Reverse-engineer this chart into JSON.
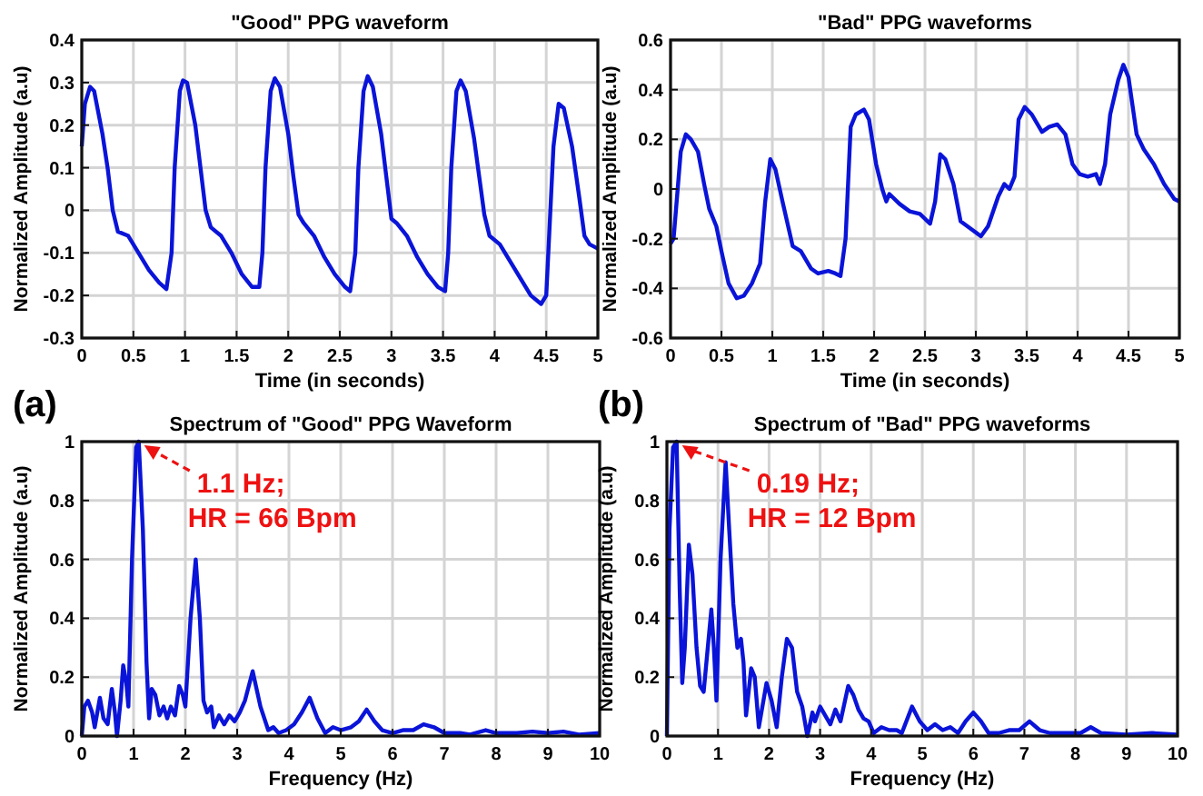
{
  "chart_data": [
    {
      "type": "line",
      "title": "\"Good\" PPG waveform",
      "xlabel": "Time (in seconds)",
      "ylabel": "Normalized Amplitude (a.u)",
      "xlim": [
        0,
        5
      ],
      "ylim": [
        -0.3,
        0.4
      ],
      "xticks": [
        0,
        0.5,
        1,
        1.5,
        2,
        2.5,
        3,
        3.5,
        4,
        4.5,
        5
      ],
      "yticks": [
        -0.3,
        -0.2,
        -0.1,
        0,
        0.1,
        0.2,
        0.3,
        0.4
      ],
      "grid": true,
      "x": [
        0,
        0.03,
        0.08,
        0.12,
        0.2,
        0.25,
        0.3,
        0.35,
        0.45,
        0.55,
        0.65,
        0.75,
        0.82,
        0.87,
        0.9,
        0.95,
        0.98,
        1.02,
        1.1,
        1.15,
        1.2,
        1.25,
        1.35,
        1.45,
        1.55,
        1.65,
        1.72,
        1.75,
        1.78,
        1.83,
        1.87,
        1.92,
        2.0,
        2.05,
        2.1,
        2.15,
        2.25,
        2.35,
        2.45,
        2.55,
        2.6,
        2.65,
        2.68,
        2.73,
        2.77,
        2.82,
        2.9,
        2.95,
        3.0,
        3.05,
        3.15,
        3.25,
        3.35,
        3.45,
        3.52,
        3.55,
        3.58,
        3.63,
        3.67,
        3.72,
        3.8,
        3.85,
        3.9,
        3.95,
        4.05,
        4.15,
        4.25,
        4.35,
        4.45,
        4.5,
        4.53,
        4.57,
        4.62,
        4.67,
        4.75,
        4.82,
        4.87,
        4.92,
        5.0
      ],
      "series": [
        {
          "color": "#0a14d8",
          "values": [
            0.15,
            0.25,
            0.29,
            0.28,
            0.18,
            0.1,
            0.0,
            -0.05,
            -0.06,
            -0.1,
            -0.14,
            -0.17,
            -0.185,
            -0.1,
            0.1,
            0.28,
            0.305,
            0.3,
            0.2,
            0.1,
            0.0,
            -0.04,
            -0.06,
            -0.1,
            -0.15,
            -0.18,
            -0.18,
            -0.1,
            0.1,
            0.28,
            0.31,
            0.29,
            0.18,
            0.08,
            -0.01,
            -0.03,
            -0.06,
            -0.11,
            -0.15,
            -0.18,
            -0.19,
            -0.1,
            0.1,
            0.28,
            0.315,
            0.29,
            0.18,
            0.08,
            -0.02,
            -0.03,
            -0.06,
            -0.11,
            -0.15,
            -0.18,
            -0.19,
            -0.1,
            0.1,
            0.28,
            0.305,
            0.28,
            0.17,
            0.08,
            -0.01,
            -0.06,
            -0.08,
            -0.12,
            -0.16,
            -0.2,
            -0.22,
            -0.2,
            -0.05,
            0.15,
            0.25,
            0.24,
            0.15,
            0.03,
            -0.06,
            -0.08,
            -0.09
          ]
        }
      ]
    },
    {
      "type": "line",
      "title": "\"Bad\" PPG waveforms",
      "xlabel": "Time (in seconds)",
      "ylabel": "Normalized Amplitude (a.u)",
      "xlim": [
        0,
        5
      ],
      "ylim": [
        -0.6,
        0.6
      ],
      "xticks": [
        0,
        0.5,
        1,
        1.5,
        2,
        2.5,
        3,
        3.5,
        4,
        4.5,
        5
      ],
      "yticks": [
        -0.6,
        -0.4,
        -0.2,
        0,
        0.2,
        0.4,
        0.6
      ],
      "grid": true,
      "x": [
        0,
        0.03,
        0.07,
        0.1,
        0.15,
        0.2,
        0.27,
        0.33,
        0.38,
        0.45,
        0.5,
        0.57,
        0.65,
        0.72,
        0.8,
        0.88,
        0.93,
        0.98,
        1.03,
        1.1,
        1.2,
        1.28,
        1.38,
        1.45,
        1.55,
        1.62,
        1.67,
        1.72,
        1.77,
        1.82,
        1.9,
        1.95,
        2.02,
        2.08,
        2.12,
        2.15,
        2.25,
        2.35,
        2.45,
        2.55,
        2.6,
        2.65,
        2.7,
        2.78,
        2.85,
        2.95,
        3.05,
        3.12,
        3.22,
        3.28,
        3.33,
        3.38,
        3.42,
        3.48,
        3.55,
        3.65,
        3.72,
        3.8,
        3.88,
        3.95,
        4.02,
        4.1,
        4.18,
        4.22,
        4.27,
        4.32,
        4.4,
        4.45,
        4.5,
        4.58,
        4.65,
        4.75,
        4.85,
        4.95,
        5.0
      ],
      "series": [
        {
          "color": "#0a14d8",
          "values": [
            -0.22,
            -0.2,
            0.0,
            0.15,
            0.22,
            0.2,
            0.15,
            0.02,
            -0.08,
            -0.15,
            -0.25,
            -0.38,
            -0.44,
            -0.43,
            -0.38,
            -0.3,
            -0.05,
            0.12,
            0.08,
            -0.05,
            -0.23,
            -0.25,
            -0.32,
            -0.34,
            -0.33,
            -0.34,
            -0.35,
            -0.2,
            0.25,
            0.3,
            0.32,
            0.28,
            0.1,
            0.0,
            -0.05,
            -0.02,
            -0.06,
            -0.09,
            -0.1,
            -0.14,
            -0.05,
            0.14,
            0.12,
            0.02,
            -0.13,
            -0.16,
            -0.19,
            -0.15,
            -0.03,
            0.02,
            0.0,
            0.05,
            0.28,
            0.33,
            0.3,
            0.23,
            0.25,
            0.26,
            0.22,
            0.1,
            0.06,
            0.05,
            0.06,
            0.02,
            0.1,
            0.3,
            0.44,
            0.5,
            0.45,
            0.22,
            0.16,
            0.1,
            0.02,
            -0.04,
            -0.05
          ]
        }
      ]
    },
    {
      "type": "line",
      "title": "Spectrum of \"Good\" PPG Waveform",
      "xlabel": "Frequency (Hz)",
      "ylabel": "Normalized Amplitude (a.u)",
      "xlim": [
        0,
        10
      ],
      "ylim": [
        0,
        1
      ],
      "xticks": [
        0,
        1,
        2,
        3,
        4,
        5,
        6,
        7,
        8,
        9,
        10
      ],
      "yticks": [
        0,
        0.2,
        0.4,
        0.6,
        0.8,
        1
      ],
      "grid": true,
      "annotations": [
        "(a)",
        {
          "text": "1.1 Hz;\nHR = 66 Bpm",
          "x": 1.1,
          "y": 1
        }
      ],
      "x": [
        0,
        0.05,
        0.12,
        0.2,
        0.25,
        0.35,
        0.42,
        0.5,
        0.58,
        0.64,
        0.68,
        0.75,
        0.8,
        0.86,
        0.9,
        0.97,
        1.05,
        1.1,
        1.18,
        1.25,
        1.3,
        1.35,
        1.42,
        1.5,
        1.58,
        1.65,
        1.72,
        1.8,
        1.88,
        1.95,
        2.0,
        2.1,
        2.2,
        2.28,
        2.35,
        2.42,
        2.5,
        2.55,
        2.65,
        2.75,
        2.85,
        2.95,
        3.05,
        3.15,
        3.3,
        3.45,
        3.6,
        3.7,
        3.8,
        3.95,
        4.1,
        4.25,
        4.4,
        4.55,
        4.7,
        4.85,
        5.0,
        5.2,
        5.35,
        5.5,
        5.65,
        5.8,
        6.0,
        6.2,
        6.4,
        6.6,
        6.8,
        7.0,
        7.3,
        7.5,
        7.8,
        8.0,
        8.4,
        8.7,
        9.0,
        9.3,
        9.6,
        10
      ],
      "series": [
        {
          "color": "#0a14d8",
          "values": [
            0,
            0.1,
            0.12,
            0.08,
            0.03,
            0.13,
            0.06,
            0.04,
            0.16,
            0.08,
            0,
            0.12,
            0.24,
            0.18,
            0.1,
            0.6,
            0.98,
            1.0,
            0.7,
            0.25,
            0.06,
            0.16,
            0.14,
            0.07,
            0.1,
            0.06,
            0.1,
            0.07,
            0.17,
            0.14,
            0.1,
            0.4,
            0.6,
            0.4,
            0.12,
            0.08,
            0.1,
            0.03,
            0.07,
            0.04,
            0.07,
            0.05,
            0.08,
            0.12,
            0.22,
            0.1,
            0.02,
            0.03,
            0.01,
            0.02,
            0.04,
            0.08,
            0.13,
            0.06,
            0.01,
            0.03,
            0.02,
            0.03,
            0.05,
            0.09,
            0.05,
            0.02,
            0.01,
            0.02,
            0.02,
            0.04,
            0.03,
            0.01,
            0.01,
            0.005,
            0.02,
            0.01,
            0.01,
            0.015,
            0.01,
            0.015,
            0.005,
            0.01
          ]
        }
      ]
    },
    {
      "type": "line",
      "title": "Spectrum of \"Bad\" PPG waveforms",
      "xlabel": "Frequency (Hz)",
      "ylabel": "Normalized Amplitude (a.u)",
      "xlim": [
        0,
        10
      ],
      "ylim": [
        0,
        1
      ],
      "xticks": [
        0,
        1,
        2,
        3,
        4,
        5,
        6,
        7,
        8,
        9,
        10
      ],
      "yticks": [
        0,
        0.2,
        0.4,
        0.6,
        0.8,
        1
      ],
      "grid": true,
      "annotations": [
        "(b)",
        {
          "text": "0.19 Hz;\nHR = 12 Bpm",
          "x": 0.19,
          "y": 1
        }
      ],
      "x": [
        0,
        0.05,
        0.12,
        0.19,
        0.25,
        0.3,
        0.35,
        0.43,
        0.5,
        0.58,
        0.65,
        0.72,
        0.8,
        0.87,
        0.92,
        0.97,
        1.05,
        1.15,
        1.22,
        1.3,
        1.38,
        1.45,
        1.5,
        1.55,
        1.65,
        1.72,
        1.8,
        1.95,
        2.05,
        2.15,
        2.25,
        2.35,
        2.45,
        2.55,
        2.65,
        2.75,
        2.85,
        2.9,
        3.0,
        3.1,
        3.2,
        3.3,
        3.4,
        3.55,
        3.65,
        3.75,
        3.85,
        3.95,
        4.05,
        4.2,
        4.35,
        4.5,
        4.6,
        4.8,
        4.95,
        5.1,
        5.25,
        5.4,
        5.55,
        5.7,
        5.85,
        6.0,
        6.15,
        6.3,
        6.5,
        6.7,
        6.9,
        7.1,
        7.3,
        7.5,
        7.8,
        8.1,
        8.3,
        8.5,
        9.0,
        9.5,
        10
      ],
      "series": [
        {
          "color": "#0a14d8",
          "values": [
            0,
            0.7,
            0.98,
            1.0,
            0.5,
            0.18,
            0.3,
            0.65,
            0.55,
            0.3,
            0.17,
            0.15,
            0.3,
            0.43,
            0.3,
            0.12,
            0.6,
            0.93,
            0.7,
            0.45,
            0.3,
            0.33,
            0.25,
            0.07,
            0.23,
            0.2,
            0.03,
            0.18,
            0.12,
            0.03,
            0.2,
            0.33,
            0.3,
            0.15,
            0.1,
            0.0,
            0.08,
            0.05,
            0.1,
            0.07,
            0.04,
            0.09,
            0.05,
            0.17,
            0.14,
            0.09,
            0.06,
            0.05,
            0.01,
            0.03,
            0.02,
            0.02,
            0.01,
            0.1,
            0.05,
            0.02,
            0.04,
            0.02,
            0.03,
            0.01,
            0.05,
            0.08,
            0.05,
            0.01,
            0.01,
            0.02,
            0.02,
            0.05,
            0.02,
            0.01,
            0.01,
            0.01,
            0.03,
            0.01,
            0.005,
            0.01,
            0.005
          ]
        }
      ]
    }
  ]
}
